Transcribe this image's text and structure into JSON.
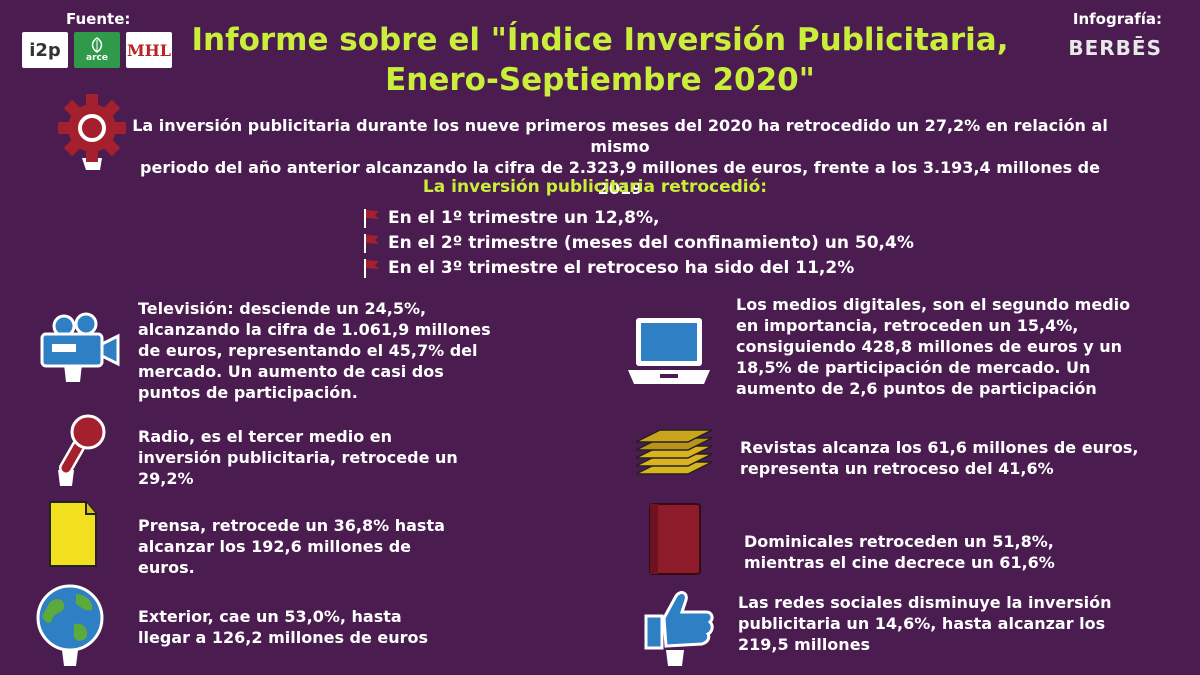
{
  "source": {
    "label": "Fuente:",
    "logos": [
      {
        "name": "i2p",
        "text": "i2p"
      },
      {
        "name": "arce",
        "text": "arce"
      },
      {
        "name": "mhl",
        "text": "MHL"
      }
    ]
  },
  "credit": {
    "label": "Infografía:",
    "brand": "BERBĒS"
  },
  "title_lines": [
    "Informe sobre el \"Índice Inversión Publicitaria,",
    "Enero-Septiembre 2020\""
  ],
  "intro_lines": [
    "La inversión publicitaria durante los nueve primeros meses del 2020 ha retrocedido un 27,2% en relación al mismo",
    "periodo del año anterior alcanzando la cifra de 2.323,9 millones de euros, frente a los 3.193,4 millones de 2019"
  ],
  "quarters_title": "La inversión publicitaria retrocedió:",
  "quarters": [
    "En el 1º trimestre un 12,8%,",
    "En el 2º trimestre (meses del confinamiento) un 50,4%",
    "En el 3º trimestre el retroceso ha sido del 11,2%"
  ],
  "left_items": [
    {
      "icon": "video-camera-icon",
      "lines": [
        "Televisión: desciende un 24,5%,",
        "alcanzando la cifra de 1.061,9 millones",
        "de euros, representando el 45,7% del",
        "mercado. Un aumento de casi dos",
        "puntos de participación."
      ]
    },
    {
      "icon": "microphone-icon",
      "lines": [
        "Radio, es el tercer medio en",
        "inversión publicitaria, retrocede un",
        "29,2%"
      ]
    },
    {
      "icon": "document-icon",
      "lines": [
        "Prensa, retrocede un 36,8% hasta",
        "alcanzar los 192,6 millones de",
        "euros."
      ]
    },
    {
      "icon": "globe-icon",
      "lines": [
        "Exterior, cae un 53,0%, hasta",
        "llegar a 126,2 millones de euros"
      ]
    }
  ],
  "right_items": [
    {
      "icon": "laptop-icon",
      "lines": [
        "Los medios digitales, son el segundo medio",
        "en importancia, retroceden un 15,4%,",
        "consiguiendo 428,8 millones de euros y un",
        "18,5% de participación de mercado. Un",
        "aumento de 2,6 puntos de participación"
      ]
    },
    {
      "icon": "magazine-stack-icon",
      "lines": [
        "Revistas alcanza los 61,6 millones de euros,",
        "representa un retroceso del 41,6%"
      ]
    },
    {
      "icon": "book-icon",
      "lines": [
        "Dominicales retroceden un 51,8%,",
        "mientras el cine decrece un 61,6%"
      ]
    },
    {
      "icon": "thumbs-up-icon",
      "lines": [
        "Las redes sociales disminuye la inversión",
        "publicitaria un 14,6%, hasta alcanzar los",
        "219,5 millones"
      ]
    }
  ],
  "colors": {
    "background": "#4a1c4f",
    "accent": "#c9ef3a",
    "text": "#ffffff",
    "icon_red": "#a4202e",
    "icon_blue": "#2e7fc4",
    "icon_yellow": "#f2e01f"
  }
}
